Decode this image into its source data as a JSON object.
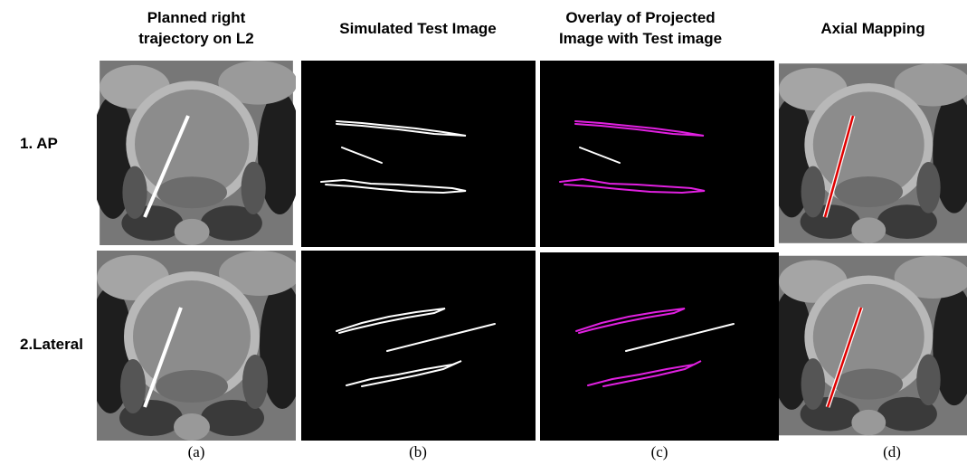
{
  "columns": [
    {
      "header": [
        "Planned right",
        "trajectory on L2"
      ],
      "caption": "(a)"
    },
    {
      "header": [
        "Simulated Test Image"
      ],
      "caption": "(b)"
    },
    {
      "header": [
        "Overlay of Projected",
        "Image with Test image"
      ],
      "caption": "(c)"
    },
    {
      "header": [
        "Axial Mapping"
      ],
      "caption": "(d)"
    }
  ],
  "rows": [
    "1. AP",
    "2.Lateral"
  ]
}
